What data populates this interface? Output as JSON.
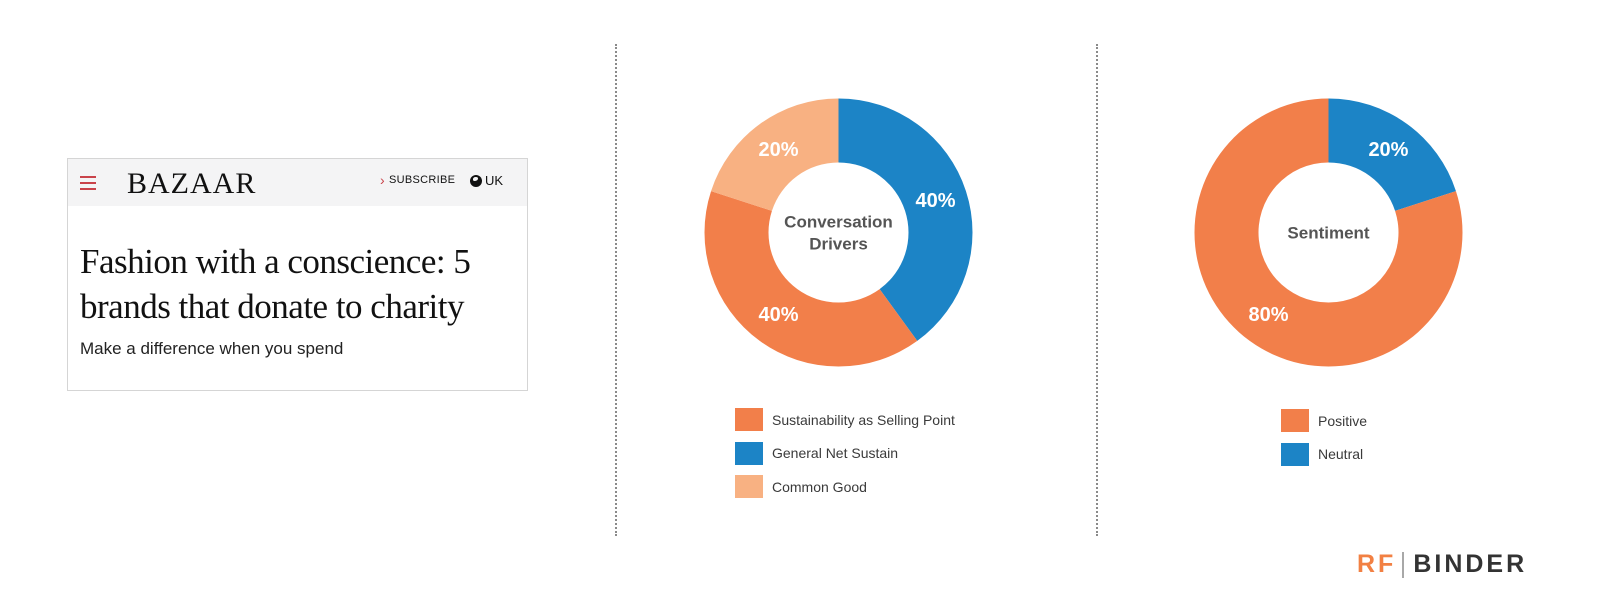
{
  "article": {
    "logo": "BAZAAR",
    "subscribe_label": "SUBSCRIBE",
    "region_label": "UK",
    "headline": "Fashion with a conscience: 5 brands that donate to charity",
    "subhead": "Make a difference when you spend"
  },
  "brand": {
    "rf": "RF",
    "binder": "BINDER"
  },
  "chart_data": [
    {
      "type": "pie",
      "title": "Conversation Drivers",
      "slices": [
        {
          "label": "General Net Sustain",
          "value": 40,
          "display": "40%",
          "color": "#1c84c6"
        },
        {
          "label": "Sustainability as Selling Point",
          "value": 40,
          "display": "40%",
          "color": "#f27f4a"
        },
        {
          "label": "Common Good",
          "value": 20,
          "display": "20%",
          "color": "#f8b182"
        }
      ],
      "legend": [
        {
          "label": "Sustainability as Selling Point",
          "color": "#f27f4a"
        },
        {
          "label": "General Net Sustain",
          "color": "#1c84c6"
        },
        {
          "label": "Common Good",
          "color": "#f8b182"
        }
      ]
    },
    {
      "type": "pie",
      "title": "Sentiment",
      "slices": [
        {
          "label": "Neutral",
          "value": 20,
          "display": "20%",
          "color": "#1c84c6"
        },
        {
          "label": "Positive",
          "value": 80,
          "display": "80%",
          "color": "#f27f4a"
        }
      ],
      "legend": [
        {
          "label": "Positive",
          "color": "#f27f4a"
        },
        {
          "label": "Neutral",
          "color": "#1c84c6"
        }
      ]
    }
  ]
}
